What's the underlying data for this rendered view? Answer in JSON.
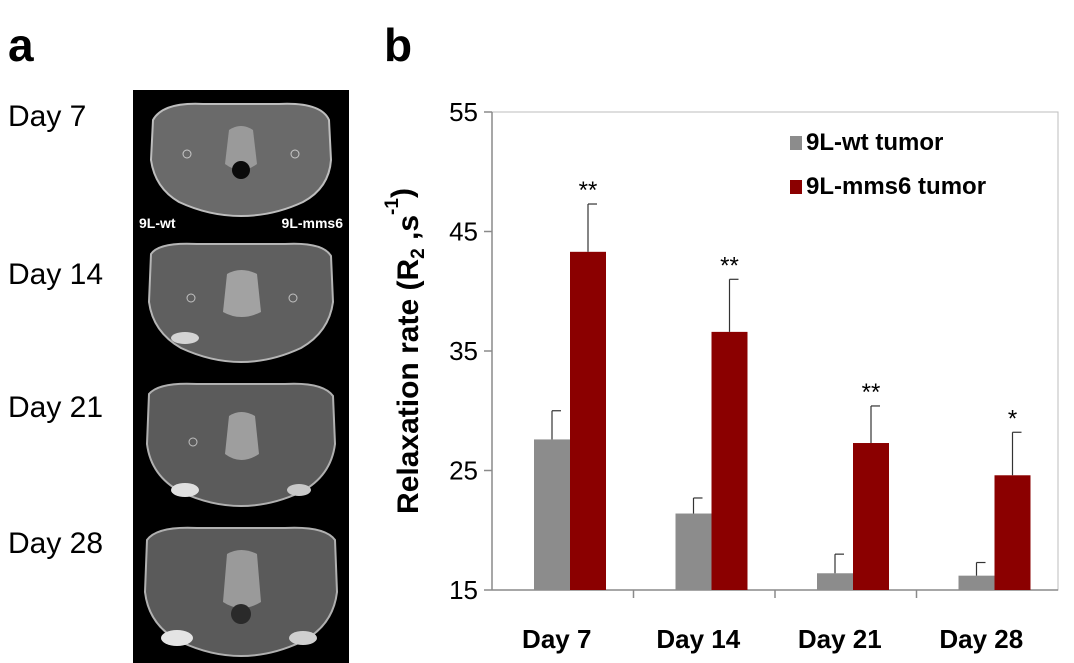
{
  "panel_a": {
    "letter": "a",
    "rows": [
      {
        "label": "Day 7"
      },
      {
        "label": "Day 14"
      },
      {
        "label": "Day 21"
      },
      {
        "label": "Day 28"
      }
    ],
    "tag_left": "9L-wt",
    "tag_right": "9L-mms6"
  },
  "panel_b": {
    "letter": "b"
  },
  "chart_data": {
    "type": "bar",
    "title": "",
    "xlabel": "",
    "ylabel": "Relaxation rate (R",
    "ylabel_sub": "2",
    "ylabel_mid": " ,s",
    "ylabel_sup": "-1",
    "ylabel_end": ")",
    "ylim": [
      15,
      55
    ],
    "yticks": [
      15,
      25,
      35,
      45,
      55
    ],
    "categories": [
      "Day 7",
      "Day 14",
      "Day 21",
      "Day 28"
    ],
    "series": [
      {
        "name": "9L-wt tumor",
        "color": "#8c8c8c",
        "values": [
          27.6,
          21.4,
          16.4,
          16.2
        ],
        "errors": [
          2.4,
          1.3,
          1.6,
          1.1
        ]
      },
      {
        "name": "9L-mms6 tumor",
        "color": "#8b0000",
        "values": [
          43.3,
          36.6,
          27.3,
          24.6
        ],
        "errors": [
          4.0,
          4.4,
          3.1,
          3.6
        ]
      }
    ],
    "significance": [
      "**",
      "**",
      "**",
      "*"
    ],
    "legend_position": "top-right",
    "grid": false
  }
}
